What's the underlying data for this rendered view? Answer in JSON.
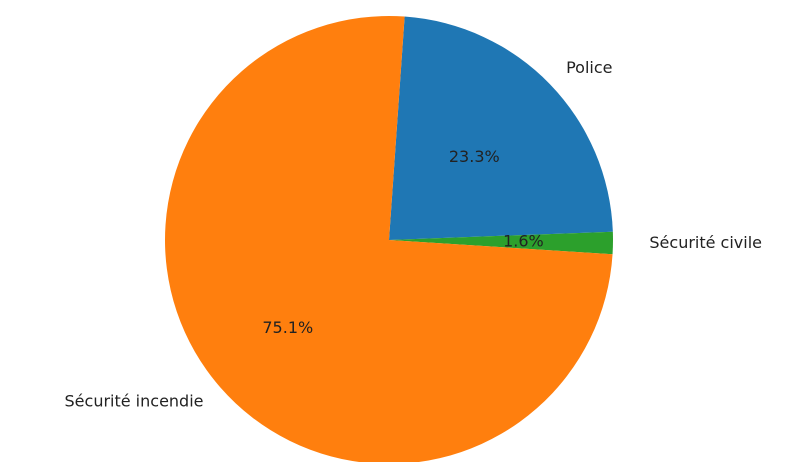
{
  "chart_data": {
    "type": "pie",
    "labels": [
      "Police",
      "Sécurité civile",
      "Sécurité incendie"
    ],
    "values": [
      23.3,
      1.6,
      75.1
    ],
    "percent_labels": [
      "23.3%",
      "1.6%",
      "75.1%"
    ],
    "colors": [
      "#1f77b4",
      "#2ca02c",
      "#ff7f0e"
    ],
    "title": "",
    "legend": "none"
  }
}
